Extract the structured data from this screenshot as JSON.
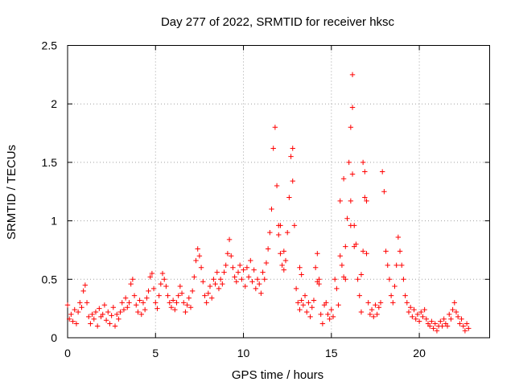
{
  "chart_data": {
    "type": "scatter",
    "title": "Day 277 of 2022, SRMTID for receiver hksc",
    "xlabel": "GPS time / hours",
    "ylabel": "SRMTID / TECUs",
    "xlim": [
      0,
      24
    ],
    "ylim": [
      0,
      2.5
    ],
    "xticks": [
      0,
      5,
      10,
      15,
      20
    ],
    "xtick_labels": [
      "0",
      "5",
      "10",
      "15",
      "20"
    ],
    "yticks": [
      0,
      0.5,
      1,
      1.5,
      2,
      2.5
    ],
    "ytick_labels": [
      "0",
      "0.5",
      "1",
      "1.5",
      "2",
      "2.5"
    ],
    "grid": true,
    "marker": "+",
    "color": "#ff0000",
    "series": [
      {
        "name": "SRMTID",
        "points": [
          [
            0.0,
            0.28
          ],
          [
            0.1,
            0.16
          ],
          [
            0.2,
            0.2
          ],
          [
            0.3,
            0.14
          ],
          [
            0.4,
            0.24
          ],
          [
            0.5,
            0.12
          ],
          [
            0.6,
            0.22
          ],
          [
            0.7,
            0.3
          ],
          [
            0.8,
            0.26
          ],
          [
            0.9,
            0.4
          ],
          [
            1.0,
            0.45
          ],
          [
            1.1,
            0.3
          ],
          [
            1.2,
            0.18
          ],
          [
            1.3,
            0.12
          ],
          [
            1.4,
            0.2
          ],
          [
            1.5,
            0.16
          ],
          [
            1.6,
            0.22
          ],
          [
            1.7,
            0.1
          ],
          [
            1.8,
            0.25
          ],
          [
            1.9,
            0.18
          ],
          [
            2.0,
            0.2
          ],
          [
            2.1,
            0.28
          ],
          [
            2.2,
            0.15
          ],
          [
            2.3,
            0.22
          ],
          [
            2.4,
            0.12
          ],
          [
            2.5,
            0.19
          ],
          [
            2.6,
            0.26
          ],
          [
            2.7,
            0.1
          ],
          [
            2.8,
            0.2
          ],
          [
            2.9,
            0.16
          ],
          [
            3.0,
            0.22
          ],
          [
            3.1,
            0.3
          ],
          [
            3.2,
            0.24
          ],
          [
            3.3,
            0.34
          ],
          [
            3.4,
            0.26
          ],
          [
            3.5,
            0.3
          ],
          [
            3.6,
            0.46
          ],
          [
            3.7,
            0.5
          ],
          [
            3.8,
            0.36
          ],
          [
            3.9,
            0.28
          ],
          [
            4.0,
            0.22
          ],
          [
            4.1,
            0.32
          ],
          [
            4.2,
            0.2
          ],
          [
            4.3,
            0.3
          ],
          [
            4.4,
            0.24
          ],
          [
            4.5,
            0.34
          ],
          [
            4.6,
            0.4
          ],
          [
            4.7,
            0.52
          ],
          [
            4.8,
            0.55
          ],
          [
            4.9,
            0.42
          ],
          [
            5.0,
            0.3
          ],
          [
            5.1,
            0.25
          ],
          [
            5.2,
            0.36
          ],
          [
            5.3,
            0.46
          ],
          [
            5.4,
            0.55
          ],
          [
            5.5,
            0.5
          ],
          [
            5.6,
            0.44
          ],
          [
            5.7,
            0.36
          ],
          [
            5.8,
            0.3
          ],
          [
            5.9,
            0.26
          ],
          [
            6.0,
            0.32
          ],
          [
            6.1,
            0.24
          ],
          [
            6.2,
            0.3
          ],
          [
            6.3,
            0.36
          ],
          [
            6.4,
            0.44
          ],
          [
            6.5,
            0.38
          ],
          [
            6.6,
            0.3
          ],
          [
            6.7,
            0.22
          ],
          [
            6.8,
            0.28
          ],
          [
            6.9,
            0.34
          ],
          [
            7.0,
            0.26
          ],
          [
            7.1,
            0.4
          ],
          [
            7.2,
            0.52
          ],
          [
            7.3,
            0.66
          ],
          [
            7.4,
            0.76
          ],
          [
            7.5,
            0.7
          ],
          [
            7.6,
            0.6
          ],
          [
            7.7,
            0.48
          ],
          [
            7.8,
            0.36
          ],
          [
            7.9,
            0.3
          ],
          [
            8.0,
            0.38
          ],
          [
            8.1,
            0.44
          ],
          [
            8.2,
            0.34
          ],
          [
            8.3,
            0.5
          ],
          [
            8.4,
            0.46
          ],
          [
            8.5,
            0.56
          ],
          [
            8.6,
            0.42
          ],
          [
            8.7,
            0.5
          ],
          [
            8.8,
            0.46
          ],
          [
            8.9,
            0.56
          ],
          [
            9.0,
            0.62
          ],
          [
            9.1,
            0.72
          ],
          [
            9.2,
            0.84
          ],
          [
            9.3,
            0.7
          ],
          [
            9.4,
            0.6
          ],
          [
            9.5,
            0.52
          ],
          [
            9.6,
            0.48
          ],
          [
            9.7,
            0.56
          ],
          [
            9.8,
            0.62
          ],
          [
            9.9,
            0.5
          ],
          [
            10.0,
            0.58
          ],
          [
            10.1,
            0.44
          ],
          [
            10.2,
            0.6
          ],
          [
            10.3,
            0.52
          ],
          [
            10.4,
            0.66
          ],
          [
            10.5,
            0.48
          ],
          [
            10.6,
            0.58
          ],
          [
            10.7,
            0.42
          ],
          [
            10.8,
            0.5
          ],
          [
            10.9,
            0.46
          ],
          [
            11.0,
            0.38
          ],
          [
            11.1,
            0.56
          ],
          [
            11.2,
            0.5
          ],
          [
            11.3,
            0.64
          ],
          [
            11.4,
            0.76
          ],
          [
            11.5,
            0.9
          ],
          [
            11.6,
            1.1
          ],
          [
            11.7,
            1.62
          ],
          [
            11.8,
            1.8
          ],
          [
            11.9,
            1.3
          ],
          [
            12.0,
            0.88
          ],
          [
            12.1,
            0.72
          ],
          [
            12.2,
            0.62
          ],
          [
            12.3,
            0.58
          ],
          [
            12.4,
            0.66
          ],
          [
            12.5,
            0.9
          ],
          [
            12.6,
            1.2
          ],
          [
            12.7,
            1.55
          ],
          [
            12.8,
            1.34
          ],
          [
            12.9,
            0.96
          ],
          [
            13.0,
            0.42
          ],
          [
            13.1,
            0.3
          ],
          [
            13.2,
            0.24
          ],
          [
            13.3,
            0.32
          ],
          [
            13.4,
            0.28
          ],
          [
            13.5,
            0.36
          ],
          [
            13.6,
            0.22
          ],
          [
            13.7,
            0.3
          ],
          [
            13.8,
            0.18
          ],
          [
            13.9,
            0.26
          ],
          [
            14.0,
            0.32
          ],
          [
            14.1,
            0.6
          ],
          [
            14.2,
            0.72
          ],
          [
            14.3,
            0.5
          ],
          [
            14.4,
            0.2
          ],
          [
            14.5,
            0.12
          ],
          [
            14.6,
            0.28
          ],
          [
            14.7,
            0.3
          ],
          [
            14.8,
            0.2
          ],
          [
            14.9,
            0.16
          ],
          [
            15.0,
            0.24
          ],
          [
            15.1,
            0.18
          ],
          [
            15.2,
            0.5
          ],
          [
            15.3,
            0.42
          ],
          [
            15.4,
            0.28
          ],
          [
            15.5,
            0.7
          ],
          [
            15.6,
            0.62
          ],
          [
            15.7,
            0.52
          ],
          [
            15.8,
            0.5
          ],
          [
            15.9,
            1.02
          ],
          [
            16.0,
            1.5
          ],
          [
            16.1,
            1.8
          ],
          [
            16.2,
            1.4
          ],
          [
            16.3,
            0.96
          ],
          [
            16.4,
            0.8
          ],
          [
            16.5,
            0.5
          ],
          [
            16.6,
            0.36
          ],
          [
            16.7,
            0.22
          ],
          [
            16.8,
            0.74
          ],
          [
            16.9,
            1.2
          ],
          [
            17.0,
            0.72
          ],
          [
            17.1,
            0.3
          ],
          [
            17.2,
            0.2
          ],
          [
            17.3,
            0.24
          ],
          [
            17.4,
            0.18
          ],
          [
            17.5,
            0.28
          ],
          [
            17.6,
            0.2
          ],
          [
            17.7,
            0.26
          ],
          [
            17.8,
            0.3
          ],
          [
            17.9,
            1.42
          ],
          [
            18.0,
            1.25
          ],
          [
            18.1,
            0.74
          ],
          [
            18.2,
            0.62
          ],
          [
            18.3,
            0.5
          ],
          [
            18.4,
            0.36
          ],
          [
            18.5,
            0.3
          ],
          [
            18.6,
            0.44
          ],
          [
            18.7,
            0.62
          ],
          [
            18.8,
            0.86
          ],
          [
            18.9,
            0.74
          ],
          [
            19.0,
            0.62
          ],
          [
            19.1,
            0.5
          ],
          [
            19.2,
            0.36
          ],
          [
            19.3,
            0.3
          ],
          [
            19.4,
            0.22
          ],
          [
            19.5,
            0.26
          ],
          [
            19.6,
            0.18
          ],
          [
            19.7,
            0.24
          ],
          [
            19.8,
            0.16
          ],
          [
            19.9,
            0.2
          ],
          [
            20.0,
            0.14
          ],
          [
            20.1,
            0.22
          ],
          [
            20.2,
            0.18
          ],
          [
            20.3,
            0.24
          ],
          [
            20.4,
            0.16
          ],
          [
            20.5,
            0.12
          ],
          [
            20.6,
            0.1
          ],
          [
            20.7,
            0.14
          ],
          [
            20.8,
            0.08
          ],
          [
            20.9,
            0.12
          ],
          [
            21.0,
            0.06
          ],
          [
            21.1,
            0.1
          ],
          [
            21.2,
            0.14
          ],
          [
            21.3,
            0.1
          ],
          [
            21.4,
            0.16
          ],
          [
            21.5,
            0.12
          ],
          [
            21.6,
            0.1
          ],
          [
            21.7,
            0.2
          ],
          [
            21.8,
            0.16
          ],
          [
            21.9,
            0.24
          ],
          [
            22.0,
            0.3
          ],
          [
            22.1,
            0.22
          ],
          [
            22.2,
            0.18
          ],
          [
            22.3,
            0.12
          ],
          [
            22.4,
            0.16
          ],
          [
            22.5,
            0.1
          ],
          [
            22.6,
            0.06
          ],
          [
            22.7,
            0.12
          ],
          [
            22.8,
            0.08
          ],
          [
            16.2,
            2.25
          ],
          [
            16.2,
            1.97
          ],
          [
            16.8,
            1.5
          ],
          [
            16.9,
            1.42
          ],
          [
            15.7,
            1.36
          ],
          [
            15.5,
            1.17
          ],
          [
            16.1,
            1.17
          ],
          [
            17.0,
            1.17
          ],
          [
            12.1,
            0.96
          ],
          [
            12.0,
            0.96
          ],
          [
            16.1,
            0.96
          ],
          [
            16.3,
            0.78
          ],
          [
            15.8,
            0.78
          ],
          [
            16.7,
            0.54
          ],
          [
            12.8,
            1.62
          ],
          [
            12.3,
            0.74
          ],
          [
            13.2,
            0.6
          ],
          [
            13.3,
            0.54
          ],
          [
            14.2,
            0.48
          ],
          [
            14.3,
            0.46
          ]
        ]
      }
    ]
  }
}
